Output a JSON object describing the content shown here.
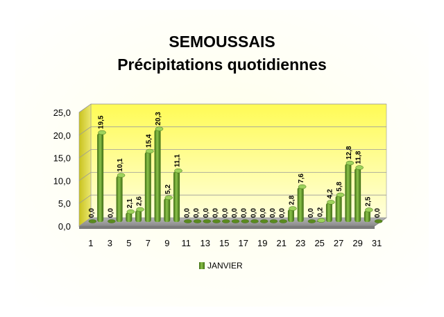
{
  "chart_data": {
    "type": "bar",
    "title": "SEMOUSSAIS",
    "subtitle": "Précipitations quotidiennes",
    "categories": [
      "1",
      "2",
      "3",
      "4",
      "5",
      "6",
      "7",
      "8",
      "9",
      "10",
      "11",
      "12",
      "13",
      "14",
      "15",
      "16",
      "17",
      "18",
      "19",
      "20",
      "21",
      "22",
      "23",
      "24",
      "25",
      "26",
      "27",
      "28",
      "29",
      "30",
      "31"
    ],
    "x_tick_labels": [
      "1",
      "3",
      "5",
      "7",
      "9",
      "11",
      "13",
      "15",
      "17",
      "19",
      "21",
      "23",
      "25",
      "27",
      "29",
      "31"
    ],
    "series": [
      {
        "name": "JANVIER",
        "values": [
          0.0,
          19.5,
          0.0,
          10.1,
          2.1,
          2.6,
          15.4,
          20.3,
          5.2,
          11.1,
          0.0,
          0.0,
          0.0,
          0.0,
          0.0,
          0.0,
          0.0,
          0.0,
          0.0,
          0.0,
          0.0,
          2.8,
          7.6,
          0.0,
          0.2,
          4.2,
          5.8,
          12.8,
          11.8,
          2.5,
          0.0
        ],
        "labels": [
          "0,0",
          "19,5",
          "0,0",
          "10,1",
          "2,1",
          "2,6",
          "15,4",
          "20,3",
          "5,2",
          "11,1",
          "0,0",
          "0,0",
          "0,0",
          "0,0",
          "0,0",
          "0,0",
          "0,0",
          "0,0",
          "0,0",
          "0,0",
          "0,0",
          "2,8",
          "7,6",
          "0,0",
          "0,2",
          "4,2",
          "5,8",
          "12,8",
          "11,8",
          "2,5",
          "0,0"
        ]
      }
    ],
    "y_tick_labels": [
      "0,0",
      "5,0",
      "10,0",
      "15,0",
      "20,0",
      "25,0"
    ],
    "ylim": [
      0,
      25
    ],
    "grid": true,
    "legend": "bottom",
    "colors": {
      "bar": "#6aa121",
      "bar_dark": "#3d6b12",
      "wall_top": "#ffff66",
      "wall_bottom": "#ffffd6",
      "floor": "#9e9e9e"
    }
  }
}
